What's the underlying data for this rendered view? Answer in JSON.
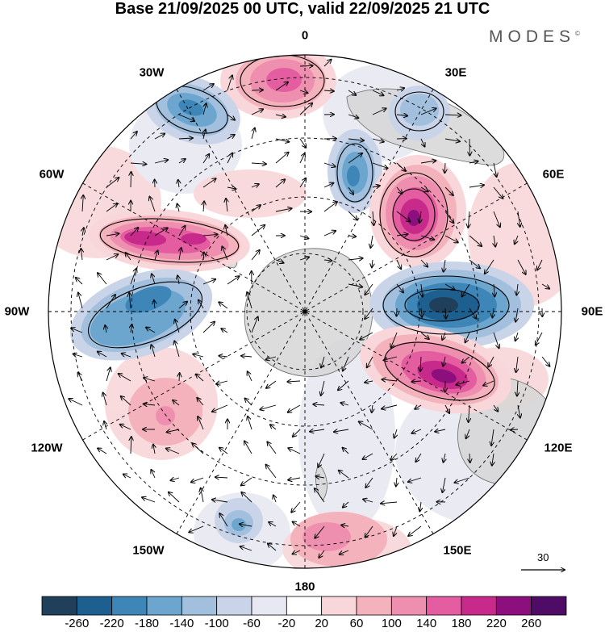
{
  "title": "Base 21/09/2025 00 UTC, valid 22/09/2025 21 UTC",
  "brand": "MODES",
  "brand_mark": "©",
  "longitude_labels": {
    "lon_0": "0",
    "lon_30e": "30E",
    "lon_60e": "60E",
    "lon_90e": "90E",
    "lon_120e": "120E",
    "lon_150e": "150E",
    "lon_180": "180",
    "lon_150w": "150W",
    "lon_120w": "120W",
    "lon_90w": "90W",
    "lon_60w": "60W",
    "lon_30w": "30W"
  },
  "reference_vector": "30",
  "colorbar": {
    "ticks": [
      "-260",
      "-220",
      "-180",
      "-140",
      "-100",
      "-60",
      "-20",
      "20",
      "60",
      "100",
      "140",
      "180",
      "220",
      "260"
    ],
    "colors": [
      "#1f3f5a",
      "#1d5f8f",
      "#3f86b8",
      "#6ca6cf",
      "#a2c0dd",
      "#c9d4e8",
      "#e8e8f2",
      "#ffffff",
      "#f8d6d9",
      "#f4b3bc",
      "#ef8fb0",
      "#e45da0",
      "#c82a8b",
      "#8d0f7e",
      "#4e0c66"
    ]
  },
  "colors": {
    "coast": "#6a6a6a",
    "land": "#d6d6d6",
    "grid": "#000000"
  }
}
